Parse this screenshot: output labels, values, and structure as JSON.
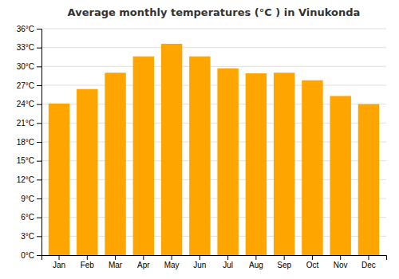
{
  "chart_data": {
    "type": "bar",
    "title": "Average monthly temperatures (°C ) in Vinukonda",
    "categories": [
      "Jan",
      "Feb",
      "Mar",
      "Apr",
      "May",
      "Jun",
      "Jul",
      "Aug",
      "Sep",
      "Oct",
      "Nov",
      "Dec"
    ],
    "values": [
      24.1,
      26.4,
      29.0,
      31.6,
      33.6,
      31.6,
      29.7,
      28.9,
      29.0,
      27.8,
      25.3,
      24.0
    ],
    "color": "#FFA500",
    "ylim": [
      0,
      36
    ],
    "yticks": [
      {
        "value": 0,
        "label": "0°C"
      },
      {
        "value": 3,
        "label": "3°C"
      },
      {
        "value": 6,
        "label": "6°C"
      },
      {
        "value": 9,
        "label": "9°C"
      },
      {
        "value": 12,
        "label": "12°C"
      },
      {
        "value": 15,
        "label": "15°C"
      },
      {
        "value": 18,
        "label": "18°C"
      },
      {
        "value": 21,
        "label": "21°C"
      },
      {
        "value": 24,
        "label": "24°C"
      },
      {
        "value": 27,
        "label": "27°C"
      },
      {
        "value": 30,
        "label": "30°C"
      },
      {
        "value": 33,
        "label": "33°C"
      },
      {
        "value": 36,
        "label": "36°C"
      }
    ],
    "grid": true
  }
}
